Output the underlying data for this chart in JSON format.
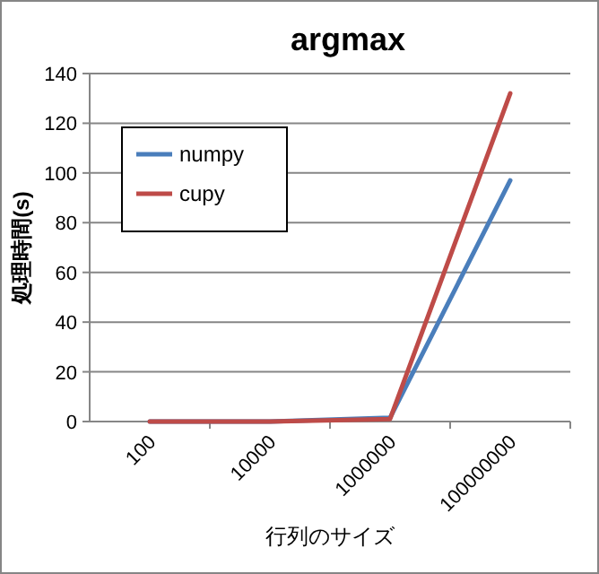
{
  "chart_data": {
    "type": "line",
    "title": "argmax",
    "xlabel": "行列のサイズ",
    "ylabel": "処理時間(s)",
    "categories": [
      "100",
      "10000",
      "1000000",
      "100000000"
    ],
    "series": [
      {
        "name": "numpy",
        "color": "#4a7ebb",
        "values": [
          0,
          0,
          1.5,
          97
        ]
      },
      {
        "name": "cupy",
        "color": "#be4b48",
        "values": [
          0,
          0,
          1,
          132
        ]
      }
    ],
    "ylim": [
      0,
      140
    ],
    "yticks": [
      0,
      20,
      40,
      60,
      80,
      100,
      120,
      140
    ],
    "grid": "y",
    "legend": "top left"
  }
}
